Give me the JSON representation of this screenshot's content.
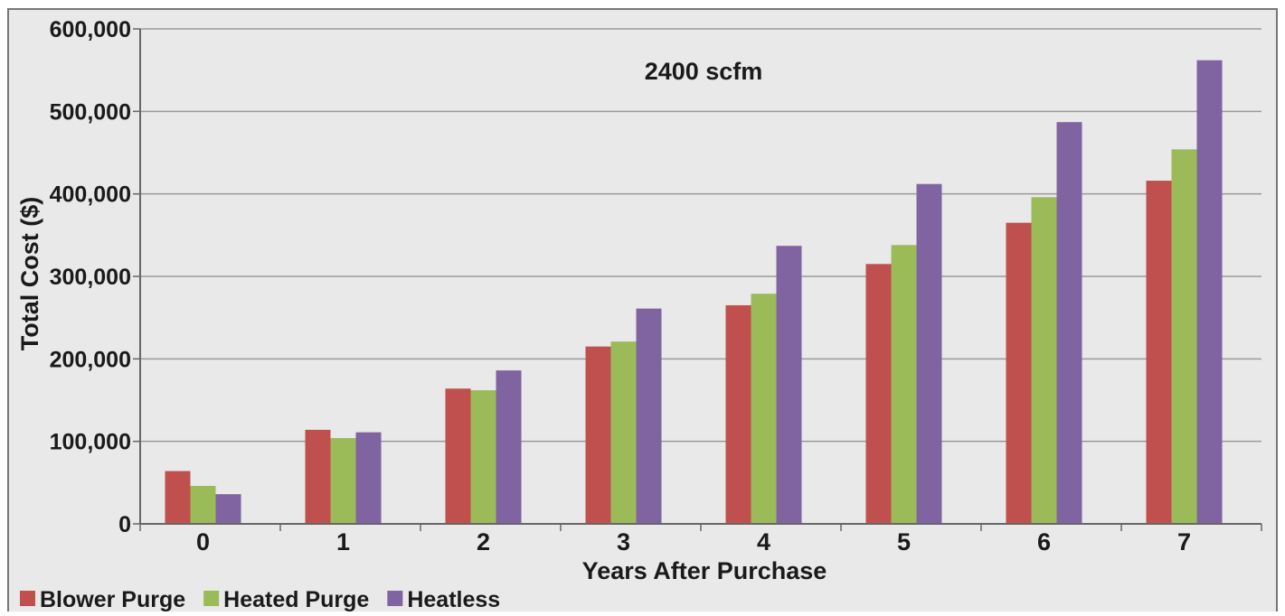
{
  "chart_data": {
    "type": "bar",
    "title": "2400 scfm",
    "xlabel": "Years After Purchase",
    "ylabel": "Total Cost ($)",
    "categories": [
      "0",
      "1",
      "2",
      "3",
      "4",
      "5",
      "6",
      "7"
    ],
    "y_ticks": [
      "0",
      "100,000",
      "200,000",
      "300,000",
      "400,000",
      "500,000",
      "600,000"
    ],
    "ylim": [
      0,
      600000
    ],
    "grid": true,
    "legend_position": "bottom-left",
    "series": [
      {
        "name": "Blower Purge",
        "color": "#c0504d",
        "values": [
          64000,
          114000,
          164000,
          215000,
          265000,
          315000,
          365000,
          416000
        ]
      },
      {
        "name": "Heated Purge",
        "color": "#9bbb59",
        "values": [
          46000,
          104000,
          162000,
          221000,
          279000,
          338000,
          396000,
          454000
        ]
      },
      {
        "name": "Heatless",
        "color": "#8064a2",
        "values": [
          36000,
          111000,
          186000,
          261000,
          337000,
          412000,
          487000,
          562000
        ]
      }
    ]
  },
  "colors": {
    "plot_background": "#e8e9e8",
    "grid": "#9a9a9a",
    "axis": "#666666",
    "frame": "#777777"
  }
}
